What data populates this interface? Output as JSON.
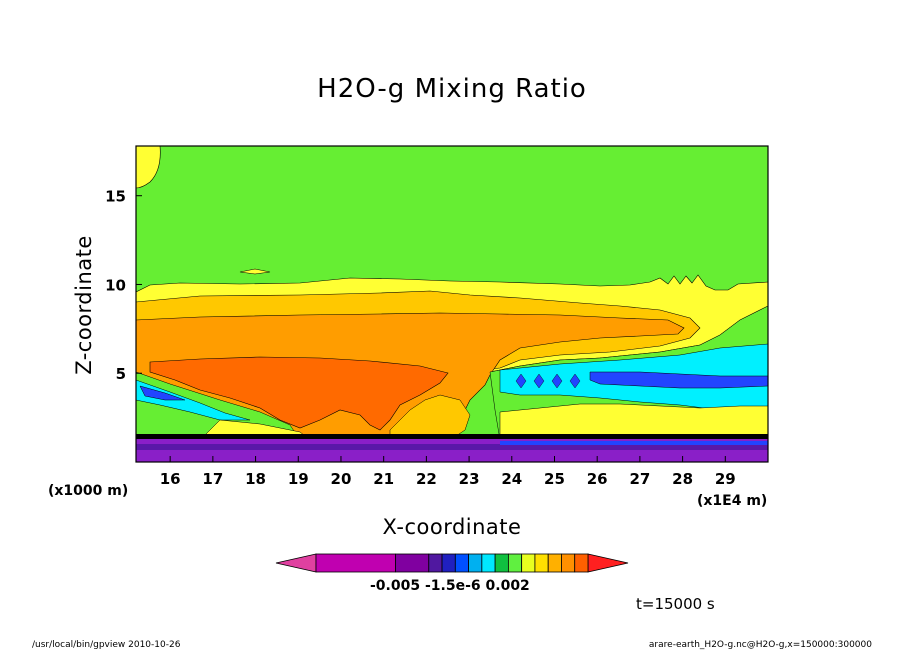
{
  "chart_data": {
    "type": "heatmap",
    "title": "H2O-g Mixing Ratio",
    "xlabel": "X-coordinate",
    "ylabel": "Z-coordinate",
    "x_unit_left": "(x1000 m)",
    "x_unit_right": "(x1E4 m)",
    "xlim": [
      15.2,
      30.0
    ],
    "ylim": [
      0,
      17.8
    ],
    "x_ticks": [
      16,
      17,
      18,
      19,
      20,
      21,
      22,
      23,
      24,
      25,
      26,
      27,
      28,
      29
    ],
    "y_ticks": [
      5,
      10,
      15
    ],
    "colorbar": {
      "colors": [
        "#e040a0",
        "#c000b0",
        "#8000a0",
        "#5018a0",
        "#2020c0",
        "#0050ff",
        "#00b0f0",
        "#00e8ff",
        "#10c040",
        "#60f040",
        "#e8ff20",
        "#ffe000",
        "#ffb000",
        "#ff9000",
        "#ff6000",
        "#ff2020"
      ],
      "tick_labels": [
        "-0.005",
        "-1.5e-6",
        "0.002"
      ]
    },
    "regions": [
      {
        "level": "green",
        "color": "#66ee33",
        "z_range": [
          10.2,
          17.8
        ]
      },
      {
        "level": "yellow",
        "color": "#ffff33",
        "z_range": [
          9.0,
          10.2
        ]
      },
      {
        "level": "light-orange",
        "color": "#ffc800",
        "z_range": [
          7.6,
          9.0
        ]
      },
      {
        "level": "orange",
        "color": "#ff9d00",
        "z_range": [
          5.5,
          7.6
        ]
      },
      {
        "level": "dark-orange",
        "color": "#ff6a00",
        "z_range": [
          3.0,
          5.5
        ]
      },
      {
        "level": "cyan",
        "color": "#00f0ff",
        "z_range": [
          3.2,
          5.2
        ]
      },
      {
        "level": "blue",
        "color": "#2244ff",
        "z_range": [
          4.2,
          5.0
        ]
      },
      {
        "level": "purple",
        "color": "#8a1fc8",
        "z_range": [
          0.0,
          1.3
        ]
      }
    ],
    "grid": false,
    "legend": "colorbar-bottom"
  },
  "annotations": {
    "time": "t=15000 s",
    "footer_left": "/usr/local/bin/gpview  2010-10-26",
    "footer_right": "arare-earth_H2O-g.nc@H2O-g,x=150000:300000"
  }
}
